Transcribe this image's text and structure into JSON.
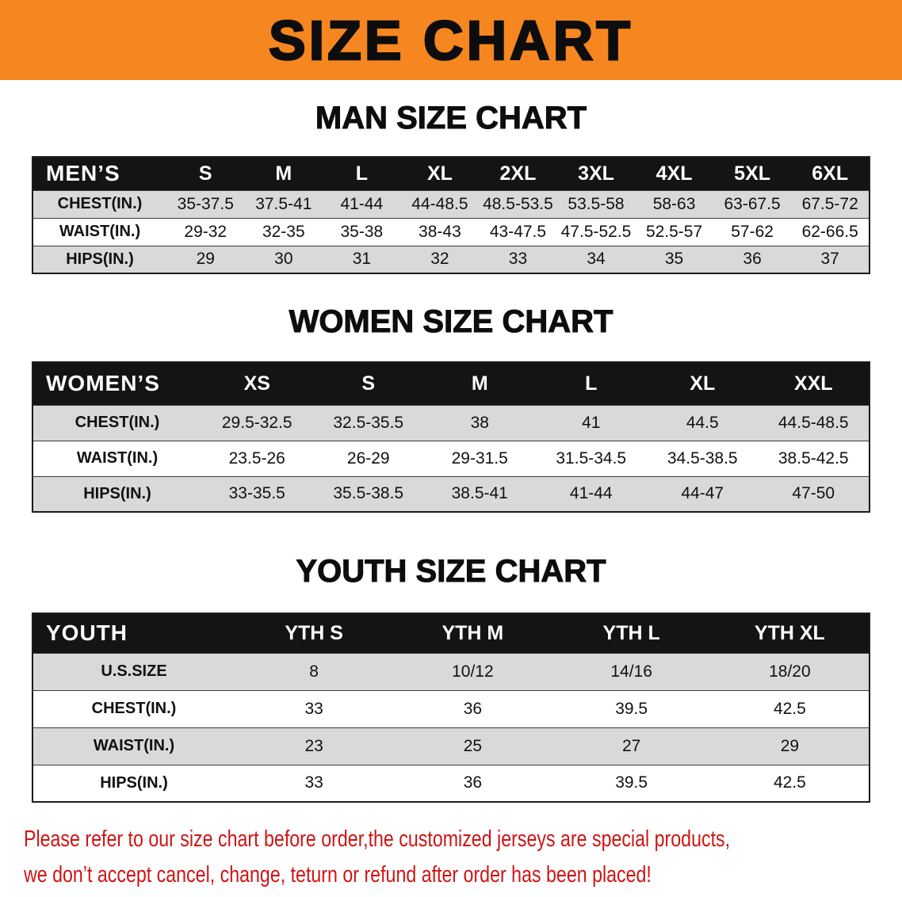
{
  "banner": {
    "title": "SIZE CHART",
    "bg_color": "#f6861f"
  },
  "sections": [
    {
      "heading": "MAN SIZE CHART",
      "table": {
        "corner": "MEN’S",
        "columns": [
          "S",
          "M",
          "L",
          "XL",
          "2XL",
          "3XL",
          "4XL",
          "5XL",
          "6XL"
        ],
        "rows": [
          {
            "label": "CHEST(IN.)",
            "values": [
              "35-37.5",
              "37.5-41",
              "41-44",
              "44-48.5",
              "48.5-53.5",
              "53.5-58",
              "58-63",
              "63-67.5",
              "67.5-72"
            ]
          },
          {
            "label": "WAIST(IN.)",
            "values": [
              "29-32",
              "32-35",
              "35-38",
              "38-43",
              "43-47.5",
              "47.5-52.5",
              "52.5-57",
              "57-62",
              "62-66.5"
            ]
          },
          {
            "label": "HIPS(IN.)",
            "values": [
              "29",
              "30",
              "31",
              "32",
              "33",
              "34",
              "35",
              "36",
              "37"
            ]
          }
        ]
      }
    },
    {
      "heading": "WOMEN SIZE CHART",
      "table": {
        "corner": "WOMEN’S",
        "columns": [
          "XS",
          "S",
          "M",
          "L",
          "XL",
          "XXL"
        ],
        "rows": [
          {
            "label": "CHEST(IN.)",
            "values": [
              "29.5-32.5",
              "32.5-35.5",
              "38",
              "41",
              "44.5",
              "44.5-48.5"
            ]
          },
          {
            "label": "WAIST(IN.)",
            "values": [
              "23.5-26",
              "26-29",
              "29-31.5",
              "31.5-34.5",
              "34.5-38.5",
              "38.5-42.5"
            ]
          },
          {
            "label": "HIPS(IN.)",
            "values": [
              "33-35.5",
              "35.5-38.5",
              "38.5-41",
              "41-44",
              "44-47",
              "47-50"
            ]
          }
        ]
      }
    },
    {
      "heading": "YOUTH SIZE CHART",
      "table": {
        "corner": "YOUTH",
        "columns": [
          "YTH S",
          "YTH M",
          "YTH L",
          "YTH XL"
        ],
        "rows": [
          {
            "label": "U.S.SIZE",
            "values": [
              "8",
              "10/12",
              "14/16",
              "18/20"
            ]
          },
          {
            "label": "CHEST(IN.)",
            "values": [
              "33",
              "36",
              "39.5",
              "42.5"
            ]
          },
          {
            "label": "WAIST(IN.)",
            "values": [
              "23",
              "25",
              "27",
              "29"
            ]
          },
          {
            "label": "HIPS(IN.)",
            "values": [
              "33",
              "36",
              "39.5",
              "42.5"
            ]
          }
        ]
      }
    }
  ],
  "disclaimer": {
    "line1": "Please refer to our size chart before order,the customized jerseys are special products,",
    "line2": "we don’t accept cancel, change, teturn or refund after order has been placed!",
    "color": "#cf1414"
  }
}
